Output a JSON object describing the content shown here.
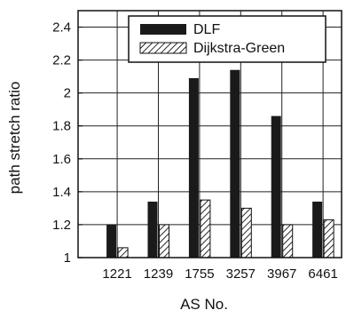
{
  "chart_data": {
    "type": "bar",
    "categories": [
      "1221",
      "1239",
      "1755",
      "3257",
      "3967",
      "6461"
    ],
    "series": [
      {
        "name": "DLF",
        "values": [
          1.2,
          1.34,
          2.09,
          2.14,
          1.86,
          1.34
        ],
        "color": "#1a1a1a"
      },
      {
        "name": "Dijkstra-Green",
        "values": [
          1.06,
          1.2,
          1.35,
          1.3,
          1.2,
          1.23
        ],
        "color": "hatched"
      }
    ],
    "xlabel": "AS No.",
    "ylabel": "path stretch ratio",
    "ylim": [
      1,
      2.5
    ],
    "yticks": [
      "1",
      "1.2",
      "1.4",
      "1.6",
      "1.8",
      "2",
      "2.2",
      "2.4"
    ],
    "grid": true,
    "legend_position": "top"
  }
}
